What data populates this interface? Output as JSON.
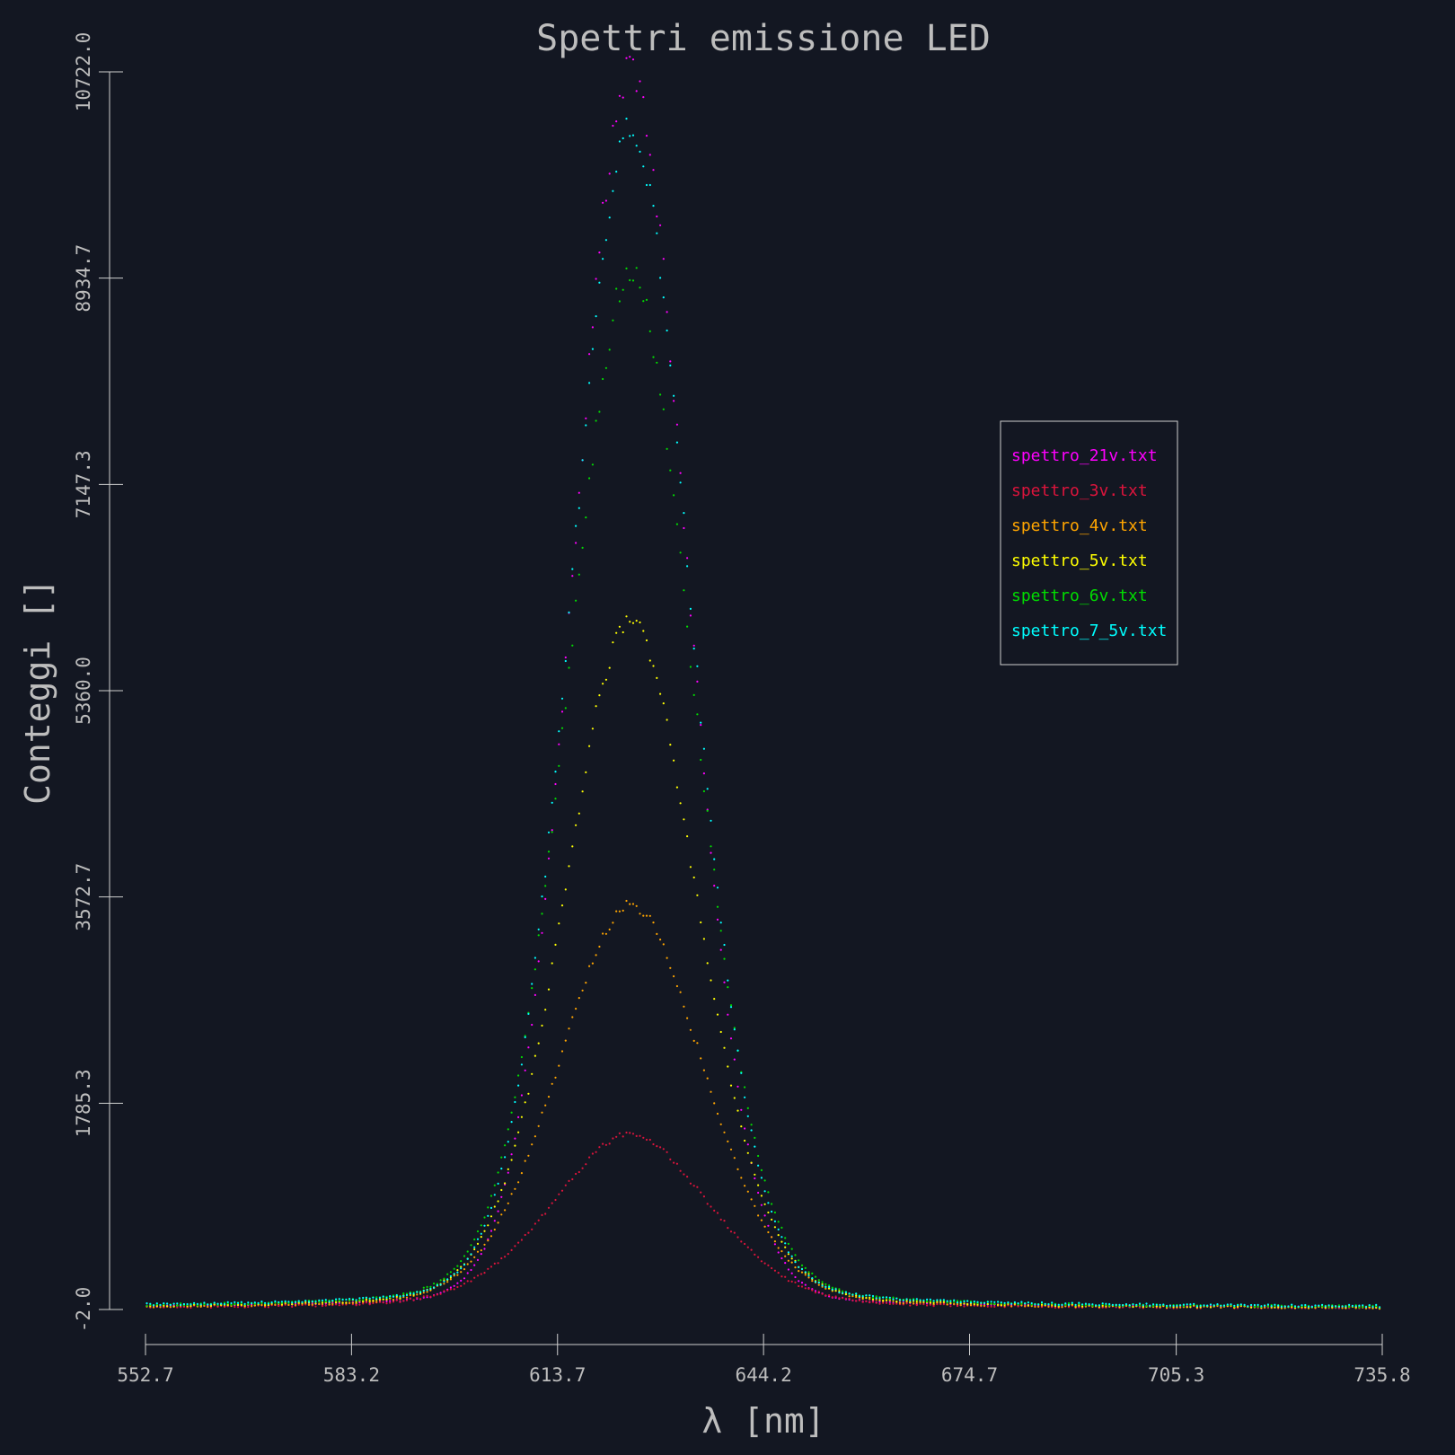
{
  "chart_data": {
    "type": "scatter",
    "title": "Spettri emissione LED",
    "xlabel": "λ [nm]",
    "ylabel": "Conteggi []",
    "xlim": [
      552.7,
      735.8
    ],
    "ylim": [
      -2.0,
      10722.0
    ],
    "x_ticks": [
      "552.7",
      "583.2",
      "613.7",
      "644.2",
      "674.7",
      "705.3",
      "735.8"
    ],
    "y_ticks": [
      "-2.0",
      "1785.3",
      "3572.7",
      "5360.0",
      "7147.3",
      "8934.7",
      "10722.0"
    ],
    "grid": false,
    "legend_position": "right",
    "x_step": 0.5,
    "series": [
      {
        "name": "spettro_21v.txt",
        "color": "#ff00ff",
        "peak": 10722,
        "center": 624.5,
        "width": 8.5,
        "tail": 0.1,
        "baseline": 10
      },
      {
        "name": "spettro_3v.txt",
        "color": "#dc143c",
        "peak": 1510,
        "center": 624.5,
        "width": 12,
        "tail": 0.25,
        "baseline": 10
      },
      {
        "name": "spettro_4v.txt",
        "color": "#ffa500",
        "peak": 3500,
        "center": 624.5,
        "width": 11,
        "tail": 0.2,
        "baseline": 10
      },
      {
        "name": "spettro_5v.txt",
        "color": "#ffff00",
        "peak": 5950,
        "center": 624.5,
        "width": 10,
        "tail": 0.18,
        "baseline": 10
      },
      {
        "name": "spettro_6v.txt",
        "color": "#00dd00",
        "peak": 8950,
        "center": 624.5,
        "width": 9.5,
        "tail": 0.15,
        "baseline": 15
      },
      {
        "name": "spettro_7_5v.txt",
        "color": "#00ffff",
        "peak": 10250,
        "center": 624.5,
        "width": 9,
        "tail": 0.14,
        "baseline": 20
      }
    ]
  }
}
